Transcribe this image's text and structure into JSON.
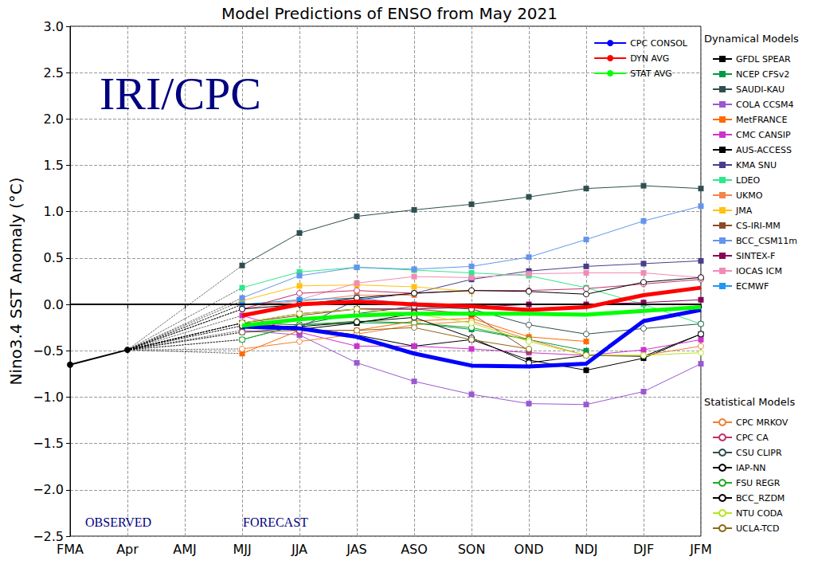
{
  "chart_data": {
    "type": "line",
    "title": "Model Predictions of ENSO from May 2021",
    "y_label": "Nino3.4 SST Anomaly (°C)",
    "watermark": "IRI/CPC",
    "annotations": [
      "OBSERVED",
      "FORECAST"
    ],
    "categories": [
      "FMA",
      "Apr",
      "AMJ",
      "MJJ",
      "JJA",
      "JAS",
      "ASO",
      "SON",
      "OND",
      "NDJ",
      "DJF",
      "JFM"
    ],
    "ylim": [
      -2.5,
      3.0
    ],
    "yticks": [
      {
        "value": -2.5,
        "label": "−2.5"
      },
      {
        "value": -2.0,
        "label": "−2.0"
      },
      {
        "value": -1.5,
        "label": "−1.5"
      },
      {
        "value": -1.0,
        "label": "−1.0"
      },
      {
        "value": -0.5,
        "label": "−0.5"
      },
      {
        "value": 0,
        "label": "0.0"
      },
      {
        "value": 0.5,
        "label": "0.5"
      },
      {
        "value": 1.0,
        "label": "1.0"
      },
      {
        "value": 1.5,
        "label": "1.5"
      },
      {
        "value": 2.0,
        "label": "2.0"
      },
      {
        "value": 2.5,
        "label": "2.5"
      },
      {
        "value": 3.0,
        "label": "3.0"
      }
    ],
    "grid": true,
    "hline": 0,
    "legend": "upper right",
    "observed": {
      "color": "#000000",
      "marker": "circle",
      "values": [
        -0.65,
        -0.49,
        null,
        null,
        null,
        null,
        null,
        null,
        null,
        null,
        null,
        null
      ]
    },
    "series": [
      {
        "name": "GFDL SPEAR",
        "group": "Dynamical Models",
        "color": "#000000",
        "marker": "square",
        "line_style": "solid",
        "values": [
          null,
          null,
          null,
          -0.2,
          -0.25,
          -0.33,
          -0.45,
          -0.38,
          -0.6,
          -0.71,
          -0.58,
          -0.32
        ]
      },
      {
        "name": "NCEP CFSv2",
        "group": "Dynamical Models",
        "color": "#009944",
        "marker": "square",
        "line_style": "solid",
        "values": [
          null,
          null,
          null,
          -0.38,
          -0.22,
          -0.2,
          -0.2,
          -0.27,
          -0.38,
          -0.5,
          null,
          null
        ]
      },
      {
        "name": "SAUDI-KAU",
        "group": "Dynamical Models",
        "color": "#2f4f4f",
        "marker": "square",
        "line_style": "solid",
        "values": [
          null,
          null,
          null,
          0.42,
          0.77,
          0.95,
          1.02,
          1.08,
          1.16,
          1.25,
          1.28,
          1.25
        ]
      },
      {
        "name": "COLA CCSM4",
        "group": "Dynamical Models",
        "color": "#9b59d0",
        "marker": "square",
        "line_style": "solid",
        "values": [
          null,
          null,
          null,
          -0.28,
          -0.33,
          -0.63,
          -0.83,
          -0.97,
          -1.07,
          -1.08,
          -0.94,
          -0.64
        ]
      },
      {
        "name": "MetFRANCE",
        "group": "Dynamical Models",
        "color": "#ff6a00",
        "marker": "square",
        "line_style": "solid",
        "values": [
          null,
          null,
          null,
          -0.53,
          -0.28,
          -0.28,
          -0.18,
          -0.15,
          -0.35,
          -0.4,
          null,
          null
        ]
      },
      {
        "name": "CMC CANSIP",
        "group": "Dynamical Models",
        "color": "#cc33cc",
        "marker": "square",
        "line_style": "solid",
        "values": [
          null,
          null,
          null,
          -0.12,
          -0.3,
          -0.45,
          -0.45,
          -0.48,
          -0.52,
          -0.55,
          -0.49,
          -0.38
        ]
      },
      {
        "name": "AUS-ACCESS",
        "group": "Dynamical Models",
        "color": "#000000",
        "marker": "square",
        "line_style": "solid",
        "values": [
          null,
          null,
          null,
          -0.23,
          -0.27,
          -0.2,
          -0.1,
          -0.1,
          null,
          null,
          null,
          null
        ]
      },
      {
        "name": "KMA SNU",
        "group": "Dynamical Models",
        "color": "#483d8b",
        "marker": "square",
        "line_style": "solid",
        "values": [
          null,
          null,
          null,
          -0.3,
          -0.25,
          0.05,
          0.12,
          0.27,
          0.36,
          0.41,
          0.44,
          0.47
        ]
      },
      {
        "name": "LDEO",
        "group": "Dynamical Models",
        "color": "#2ee88a",
        "marker": "square",
        "line_style": "solid",
        "values": [
          null,
          null,
          null,
          0.18,
          0.35,
          0.4,
          0.37,
          0.34,
          0.31,
          0.18,
          0.0,
          -0.21
        ]
      },
      {
        "name": "UKMO",
        "group": "Dynamical Models",
        "color": "#f4844c",
        "marker": "square",
        "line_style": "solid",
        "values": [
          null,
          null,
          null,
          0.0,
          0.03,
          0.1,
          0.1,
          null,
          null,
          null,
          null,
          null
        ]
      },
      {
        "name": "JMA",
        "group": "Dynamical Models",
        "color": "#ffc20e",
        "marker": "square",
        "line_style": "solid",
        "values": [
          null,
          null,
          null,
          0.04,
          0.2,
          0.21,
          0.19,
          0.14,
          null,
          null,
          null,
          null
        ]
      },
      {
        "name": "CS-IRI-MM",
        "group": "Dynamical Models",
        "color": "#8b4a2b",
        "marker": "square",
        "line_style": "solid",
        "values": [
          null,
          null,
          null,
          -0.2,
          -0.12,
          -0.05,
          -0.05,
          -0.1,
          -0.5,
          null,
          null,
          null
        ]
      },
      {
        "name": "BCC_CSM11m",
        "group": "Dynamical Models",
        "color": "#6495ed",
        "marker": "square",
        "line_style": "solid",
        "values": [
          null,
          null,
          null,
          0.07,
          0.31,
          0.4,
          0.38,
          0.41,
          0.51,
          0.7,
          0.9,
          1.06
        ]
      },
      {
        "name": "SINTEX-F",
        "group": "Dynamical Models",
        "color": "#8b0057",
        "marker": "square",
        "line_style": "solid",
        "values": [
          null,
          null,
          null,
          -0.2,
          -0.1,
          -0.05,
          -0.05,
          -0.03,
          0.0,
          0.0,
          0.02,
          0.05
        ]
      },
      {
        "name": "IOCAS ICM",
        "group": "Dynamical Models",
        "color": "#f08cb4",
        "marker": "square",
        "line_style": "solid",
        "values": [
          null,
          null,
          null,
          -0.05,
          0.05,
          0.23,
          0.3,
          0.29,
          0.33,
          0.34,
          0.34,
          0.29
        ]
      },
      {
        "name": "ECMWF",
        "group": "Dynamical Models",
        "color": "#2196f3",
        "marker": "square",
        "line_style": "solid",
        "values": [
          null,
          null,
          null,
          0.0,
          0.05,
          0.07,
          0.0,
          null,
          null,
          null,
          null,
          null
        ]
      },
      {
        "name": "CPC MRKOV",
        "group": "Statistical Models",
        "color": "#f08030",
        "marker": "open_circle",
        "line_style": "solid",
        "values": [
          null,
          null,
          null,
          -0.48,
          -0.4,
          -0.32,
          -0.22,
          -0.18,
          -0.38,
          -0.55,
          -0.55,
          -0.45
        ]
      },
      {
        "name": "CPC CA",
        "group": "Statistical Models",
        "color": "#c0306a",
        "marker": "open_circle",
        "line_style": "solid",
        "values": [
          null,
          null,
          null,
          -0.05,
          0.12,
          0.15,
          0.12,
          0.15,
          0.15,
          0.17,
          0.22,
          0.27
        ]
      },
      {
        "name": "CSU CLIPR",
        "group": "Statistical Models",
        "color": "#2f4f4f",
        "marker": "open_circle",
        "line_style": "solid",
        "values": [
          null,
          null,
          null,
          -0.2,
          -0.22,
          -0.1,
          -0.02,
          -0.05,
          -0.22,
          -0.32,
          -0.26,
          -0.21
        ]
      },
      {
        "name": "IAP-NN",
        "group": "Statistical Models",
        "color": "#000000",
        "marker": "open_circle",
        "line_style": "solid",
        "values": [
          null,
          null,
          null,
          -0.05,
          0.0,
          0.07,
          0.12,
          0.15,
          0.14,
          0.11,
          0.24,
          0.29
        ]
      },
      {
        "name": "FSU REGR",
        "group": "Statistical Models",
        "color": "#22aa22",
        "marker": "open_circle",
        "line_style": "solid",
        "values": [
          null,
          null,
          null,
          -0.38,
          -0.22,
          -0.18,
          -0.2,
          -0.25,
          -0.38,
          null,
          null,
          null
        ]
      },
      {
        "name": "BCC_RZDM",
        "group": "Statistical Models",
        "color": "#000000",
        "marker": "open_circle",
        "line_style": "solid",
        "values": [
          null,
          null,
          null,
          -0.23,
          -0.24,
          -0.19,
          -0.14,
          -0.36,
          -0.63,
          -0.55,
          -0.56,
          -0.32
        ]
      },
      {
        "name": "NTU CODA",
        "group": "Statistical Models",
        "color": "#b5e61d",
        "marker": "open_circle",
        "line_style": "solid",
        "values": [
          null,
          null,
          null,
          -0.2,
          -0.1,
          -0.05,
          -0.1,
          -0.2,
          -0.4,
          -0.55,
          -0.55,
          -0.52
        ]
      },
      {
        "name": "UCLA-TCD",
        "group": "Statistical Models",
        "color": "#8b6914",
        "marker": "open_circle",
        "line_style": "solid",
        "values": [
          null,
          null,
          null,
          -0.3,
          -0.28,
          -0.28,
          -0.25,
          -0.38,
          -0.48,
          null,
          null,
          null
        ]
      },
      {
        "name": "CPC CONSOL",
        "color": "#0000ff",
        "marker": "none",
        "line_style": "solid",
        "values": [
          null,
          null,
          null,
          -0.24,
          -0.26,
          -0.35,
          -0.53,
          -0.66,
          -0.67,
          -0.64,
          -0.18,
          -0.06
        ]
      },
      {
        "name": "DYN AVG",
        "color": "#ff0000",
        "marker": "none",
        "line_style": "solid",
        "values": [
          null,
          null,
          null,
          -0.12,
          0.0,
          0.03,
          0.0,
          -0.02,
          -0.06,
          -0.03,
          0.1,
          0.18
        ]
      },
      {
        "name": "STAT AVG",
        "color": "#00ff00",
        "marker": "none",
        "line_style": "solid",
        "values": [
          null,
          null,
          null,
          -0.23,
          -0.16,
          -0.12,
          -0.1,
          -0.1,
          -0.1,
          -0.11,
          -0.07,
          -0.03
        ]
      }
    ]
  }
}
